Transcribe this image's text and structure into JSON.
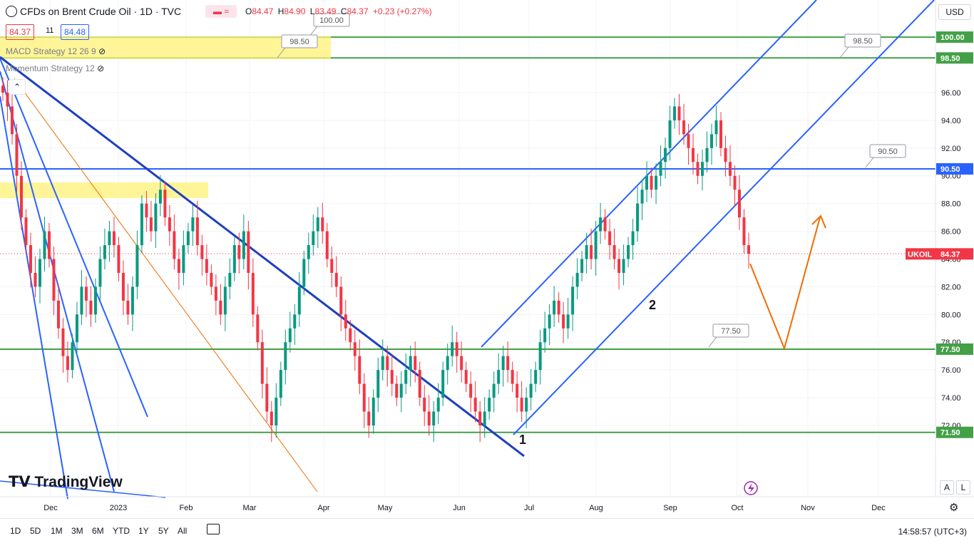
{
  "header": {
    "title": "CFDs on Brent Crude Oil · 1D · TVC",
    "ohlc": [
      {
        "k": "O",
        "v": "84.47"
      },
      {
        "k": "H",
        "v": "84.90"
      },
      {
        "k": "L",
        "v": "83.49"
      },
      {
        "k": "C",
        "v": "84.37"
      }
    ],
    "change": "+0.23 (+0.27%)",
    "sell_price": "84.37",
    "spread": "11",
    "buy_price": "84.48",
    "currency": "USD"
  },
  "indicators": [
    {
      "label": "MACD Strategy 12 26 9"
    },
    {
      "label": "Momentum Strategy 12"
    }
  ],
  "logo_text": "TradingView",
  "bottom": {
    "ranges": [
      "1D",
      "5D",
      "1M",
      "3M",
      "6M",
      "YTD",
      "1Y",
      "5Y",
      "All"
    ],
    "time": "14:58:57 (UTC+3)",
    "scale_a": "A",
    "scale_l": "L"
  },
  "chart_data": {
    "type": "candlestick",
    "ylim": [
      68.0,
      103.0
    ],
    "y_ticks": [
      "72.00",
      "74.00",
      "76.00",
      "78.00",
      "80.00",
      "82.00",
      "84.00",
      "86.00",
      "88.00",
      "90.00",
      "92.00",
      "94.00",
      "96.00",
      "98.50",
      "100.00"
    ],
    "x_ticks": [
      "Dec",
      "2023",
      "Feb",
      "Mar",
      "Apr",
      "May",
      "Jun",
      "Jul",
      "Aug",
      "Sep",
      "Oct",
      "Nov",
      "Dec"
    ],
    "levels": [
      {
        "value": 100.0,
        "label": "100.00",
        "color": "#43a047"
      },
      {
        "value": 98.5,
        "label": "98.50",
        "color": "#43a047"
      },
      {
        "value": 90.5,
        "label": "90.50",
        "color": "#2962ff"
      },
      {
        "value": 77.5,
        "label": "77.50",
        "color": "#43a047"
      },
      {
        "value": 71.5,
        "label": "71.50",
        "color": "#43a047"
      }
    ],
    "callouts": [
      "100.00",
      "98.50",
      "98.50",
      "90.50",
      "77.50"
    ],
    "last": {
      "symbol": "UKOIL",
      "value": "84.37"
    },
    "annotations": [
      "1",
      "2"
    ],
    "closes": [
      96,
      95,
      93,
      90,
      87,
      85,
      83,
      82,
      84,
      86,
      84,
      81,
      79,
      77,
      76,
      78,
      80,
      82,
      81,
      80,
      82,
      84,
      85,
      86,
      85,
      83,
      81,
      80,
      82,
      85,
      88,
      87,
      86,
      88,
      89,
      87,
      86,
      84,
      83,
      85,
      86,
      87,
      85,
      84,
      83,
      82,
      81,
      80,
      82,
      83,
      85,
      84,
      86,
      83,
      80,
      78,
      75,
      73,
      72,
      74,
      76,
      78,
      79,
      80,
      82,
      84,
      85,
      86,
      87,
      86,
      84,
      83,
      82,
      80,
      79,
      78,
      77,
      75,
      73,
      72,
      74,
      76,
      77,
      76,
      75,
      74,
      75,
      76,
      77,
      76,
      74,
      73,
      72,
      73,
      74,
      76,
      77,
      78,
      77,
      76,
      75,
      74,
      73,
      72,
      73,
      74,
      75,
      76,
      77,
      76,
      75,
      74,
      73,
      74,
      75,
      76,
      78,
      79,
      80,
      81,
      80,
      79,
      80,
      82,
      83,
      84,
      85,
      84,
      86,
      87,
      86,
      85,
      84,
      83,
      84,
      85,
      86,
      88,
      89,
      90,
      89,
      90,
      91,
      92,
      94,
      95,
      94,
      93,
      92,
      91,
      90,
      91,
      92,
      93,
      94,
      92,
      91,
      90,
      89,
      87,
      85,
      84.37
    ]
  }
}
